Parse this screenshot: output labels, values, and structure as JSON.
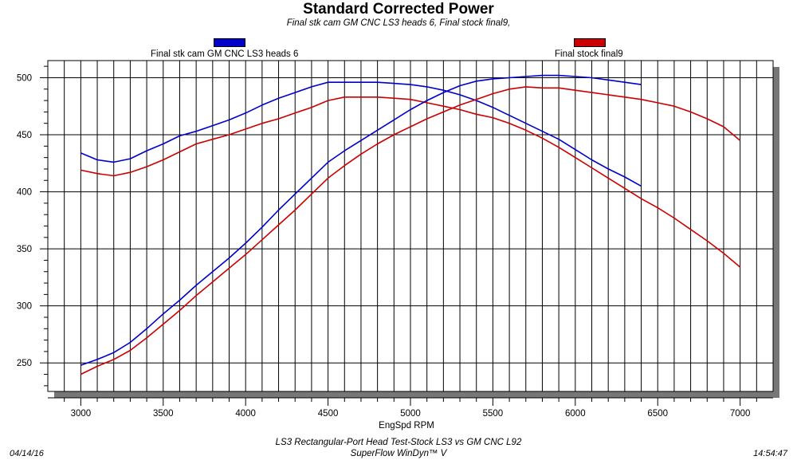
{
  "chart_data": {
    "type": "line",
    "title": "Standard Corrected Power",
    "subtitle": "Final stk cam GM CNC LS3 heads 6, Final stock final9,",
    "xlabel": "EngSpd  RPM",
    "ylabel": "",
    "xlim": [
      2800,
      7200
    ],
    "ylim": [
      225,
      515
    ],
    "x_ticks": [
      3000,
      3500,
      4000,
      4500,
      5000,
      5500,
      6000,
      6500,
      7000
    ],
    "y_ticks": [
      250,
      300,
      350,
      400,
      450,
      500
    ],
    "grid": true,
    "legend": [
      {
        "name": "Final stk cam GM CNC LS3 heads 6",
        "color": "#0000cc"
      },
      {
        "name": "Final stock final9",
        "color": "#cc0000"
      }
    ],
    "series": [
      {
        "name": "Final stk cam GM CNC LS3 heads 6",
        "measure": "torque",
        "color": "#0000cc",
        "x": [
          3000,
          3100,
          3200,
          3300,
          3400,
          3500,
          3600,
          3700,
          3800,
          3900,
          4000,
          4100,
          4200,
          4300,
          4400,
          4500,
          4600,
          4700,
          4800,
          4900,
          5000,
          5100,
          5200,
          5300,
          5400,
          5500,
          5600,
          5700,
          5800,
          5900,
          6000,
          6100,
          6200,
          6300,
          6400
        ],
        "y": [
          434,
          428,
          426,
          429,
          436,
          442,
          449,
          453,
          458,
          463,
          469,
          476,
          482,
          487,
          492,
          496,
          496,
          496,
          496,
          495,
          494,
          492,
          489,
          485,
          480,
          474,
          467,
          460,
          453,
          446,
          437,
          428,
          420,
          413,
          405
        ]
      },
      {
        "name": "Final stock final9",
        "measure": "torque",
        "color": "#cc0000",
        "x": [
          3000,
          3100,
          3200,
          3300,
          3400,
          3500,
          3600,
          3700,
          3800,
          3900,
          4000,
          4100,
          4200,
          4300,
          4400,
          4500,
          4600,
          4700,
          4800,
          4900,
          5000,
          5100,
          5200,
          5300,
          5400,
          5500,
          5600,
          5700,
          5800,
          5900,
          6000,
          6100,
          6200,
          6300,
          6400,
          6500,
          6600,
          6700,
          6800,
          6900,
          7000
        ],
        "y": [
          419,
          416,
          414,
          417,
          422,
          428,
          435,
          442,
          446,
          450,
          455,
          460,
          464,
          469,
          474,
          480,
          483,
          483,
          483,
          482,
          481,
          478,
          475,
          472,
          468,
          465,
          460,
          454,
          447,
          439,
          430,
          421,
          412,
          403,
          394,
          386,
          377,
          367,
          357,
          346,
          334
        ]
      },
      {
        "name": "Final stk cam GM CNC LS3 heads 6",
        "measure": "power",
        "color": "#0000cc",
        "x": [
          3000,
          3100,
          3200,
          3300,
          3400,
          3500,
          3600,
          3700,
          3800,
          3900,
          4000,
          4100,
          4200,
          4300,
          4400,
          4500,
          4600,
          4700,
          4800,
          4900,
          5000,
          5100,
          5200,
          5300,
          5400,
          5500,
          5600,
          5700,
          5800,
          5900,
          6000,
          6100,
          6200,
          6300,
          6400
        ],
        "y": [
          248,
          253,
          259,
          268,
          280,
          293,
          305,
          318,
          330,
          342,
          355,
          369,
          384,
          398,
          412,
          426,
          436,
          445,
          454,
          463,
          472,
          480,
          487,
          493,
          497,
          499,
          500,
          501,
          502,
          502,
          501,
          500,
          498,
          496,
          494
        ]
      },
      {
        "name": "Final stock final9",
        "measure": "power",
        "color": "#cc0000",
        "x": [
          3000,
          3100,
          3200,
          3300,
          3400,
          3500,
          3600,
          3700,
          3800,
          3900,
          4000,
          4100,
          4200,
          4300,
          4400,
          4500,
          4600,
          4700,
          4800,
          4900,
          5000,
          5100,
          5200,
          5300,
          5400,
          5500,
          5600,
          5700,
          5800,
          5900,
          6000,
          6100,
          6200,
          6300,
          6400,
          6500,
          6600,
          6700,
          6800,
          6900,
          7000
        ],
        "y": [
          240,
          247,
          253,
          261,
          272,
          284,
          296,
          309,
          321,
          333,
          345,
          358,
          371,
          384,
          398,
          412,
          423,
          433,
          442,
          450,
          457,
          464,
          470,
          476,
          481,
          486,
          490,
          492,
          491,
          491,
          489,
          487,
          485,
          483,
          481,
          478,
          475,
          470,
          464,
          457,
          445
        ]
      }
    ]
  },
  "footer": {
    "date": "04/14/16",
    "time": "14:54:47",
    "line1": "LS3 Rectangular-Port Head Test-Stock LS3 vs GM CNC L92",
    "line2": "SuperFlow WinDyn™ V"
  }
}
